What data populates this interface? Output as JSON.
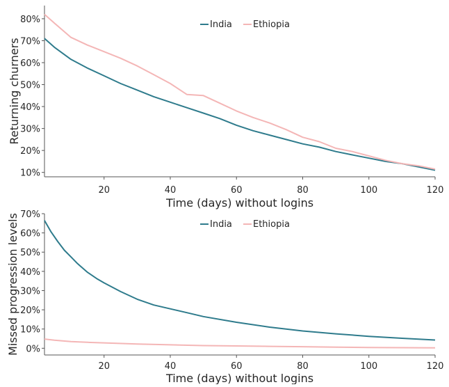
{
  "chart_data": [
    {
      "type": "line",
      "xlabel": "Time (days) without logins",
      "ylabel": "Returning churners",
      "xlim": [
        2,
        120
      ],
      "ylim": [
        0.08,
        0.86
      ],
      "xticks": [
        20,
        40,
        60,
        80,
        100,
        120
      ],
      "xtick_labels": [
        "20",
        "40",
        "60",
        "80",
        "100",
        "120"
      ],
      "yticks": [
        0.1,
        0.2,
        0.3,
        0.4,
        0.5,
        0.6,
        0.7,
        0.8
      ],
      "ytick_labels": [
        "10%",
        "20%",
        "30%",
        "40%",
        "50%",
        "60%",
        "70%",
        "80%"
      ],
      "legend_position": "top-center",
      "grid": false,
      "series": [
        {
          "name": "India",
          "color": "#2e7b8c",
          "x": [
            2,
            5,
            10,
            15,
            20,
            25,
            30,
            35,
            40,
            45,
            50,
            55,
            60,
            65,
            70,
            75,
            80,
            85,
            90,
            95,
            100,
            105,
            110,
            115,
            120
          ],
          "y": [
            0.71,
            0.67,
            0.615,
            0.575,
            0.54,
            0.505,
            0.475,
            0.445,
            0.42,
            0.395,
            0.37,
            0.345,
            0.315,
            0.29,
            0.27,
            0.25,
            0.23,
            0.215,
            0.195,
            0.18,
            0.165,
            0.15,
            0.14,
            0.125,
            0.11
          ]
        },
        {
          "name": "Ethiopia",
          "color": "#f4b6b6",
          "x": [
            2,
            5,
            10,
            15,
            20,
            25,
            30,
            35,
            40,
            45,
            50,
            55,
            60,
            65,
            70,
            75,
            80,
            85,
            90,
            95,
            100,
            105,
            110,
            115,
            120
          ],
          "y": [
            0.82,
            0.78,
            0.715,
            0.68,
            0.65,
            0.62,
            0.585,
            0.545,
            0.505,
            0.455,
            0.45,
            0.415,
            0.38,
            0.35,
            0.325,
            0.295,
            0.26,
            0.24,
            0.21,
            0.195,
            0.175,
            0.155,
            0.14,
            0.13,
            0.115
          ]
        }
      ]
    },
    {
      "type": "line",
      "xlabel": "Time (days) without logins",
      "ylabel": "Missed progression levels",
      "xlim": [
        2,
        120
      ],
      "ylim": [
        -0.035,
        0.7
      ],
      "xticks": [
        20,
        40,
        60,
        80,
        100,
        120
      ],
      "xtick_labels": [
        "20",
        "40",
        "60",
        "80",
        "100",
        "120"
      ],
      "yticks": [
        0,
        0.1,
        0.2,
        0.3,
        0.4,
        0.5,
        0.6,
        0.7
      ],
      "ytick_labels": [
        "0%",
        "10%",
        "20%",
        "30%",
        "40%",
        "50%",
        "60%",
        "70%"
      ],
      "legend_position": "top-center",
      "grid": false,
      "series": [
        {
          "name": "India",
          "color": "#2e7b8c",
          "x": [
            2,
            4,
            6,
            8,
            10,
            12,
            15,
            18,
            20,
            25,
            30,
            35,
            40,
            45,
            50,
            60,
            70,
            80,
            90,
            100,
            110,
            120
          ],
          "y": [
            0.665,
            0.605,
            0.555,
            0.51,
            0.475,
            0.44,
            0.395,
            0.36,
            0.34,
            0.295,
            0.255,
            0.225,
            0.205,
            0.185,
            0.165,
            0.135,
            0.11,
            0.09,
            0.075,
            0.062,
            0.052,
            0.043
          ]
        },
        {
          "name": "Ethiopia",
          "color": "#f4b6b6",
          "x": [
            2,
            5,
            10,
            15,
            20,
            30,
            40,
            50,
            60,
            70,
            80,
            90,
            100,
            110,
            120
          ],
          "y": [
            0.048,
            0.042,
            0.035,
            0.031,
            0.028,
            0.022,
            0.018,
            0.014,
            0.012,
            0.01,
            0.008,
            0.006,
            0.004,
            0.003,
            0.002
          ]
        }
      ]
    }
  ]
}
